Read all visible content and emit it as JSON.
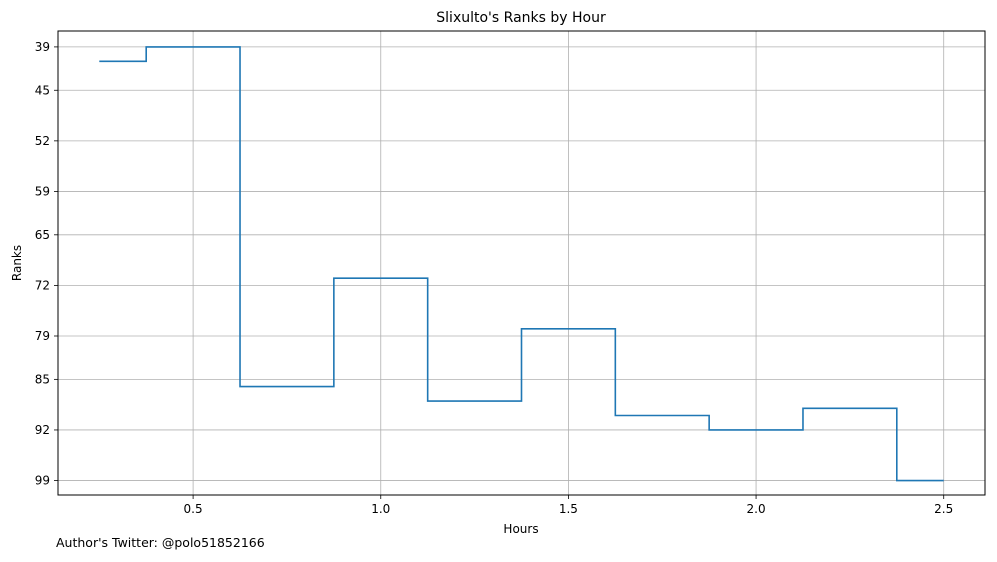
{
  "chart_data": {
    "type": "line",
    "step": "mid",
    "title": "Slixulto's Ranks by Hour",
    "xlabel": "Hours",
    "ylabel": "Ranks",
    "y_inverted": true,
    "grid": true,
    "xlim": [
      0.14,
      2.61
    ],
    "ylim": [
      101.0,
      36.8
    ],
    "xticks": [
      0.5,
      1.0,
      1.5,
      2.0,
      2.5
    ],
    "xtick_labels": [
      "0.5",
      "1.0",
      "1.5",
      "2.0",
      "2.5"
    ],
    "yticks": [
      39,
      45,
      52,
      59,
      65,
      72,
      79,
      85,
      92,
      99
    ],
    "ytick_labels": [
      "39",
      "45",
      "52",
      "59",
      "65",
      "72",
      "79",
      "85",
      "92",
      "99"
    ],
    "series_color": "#1f77b4",
    "series": [
      {
        "x": [
          0.25,
          0.5,
          0.75,
          1.0,
          1.25,
          1.5,
          1.75,
          2.0,
          2.25,
          2.5
        ],
        "values": [
          41,
          39,
          86,
          71,
          88,
          78,
          90,
          92,
          89,
          99
        ]
      }
    ]
  },
  "footnote": "Author's Twitter: @polo51852166"
}
